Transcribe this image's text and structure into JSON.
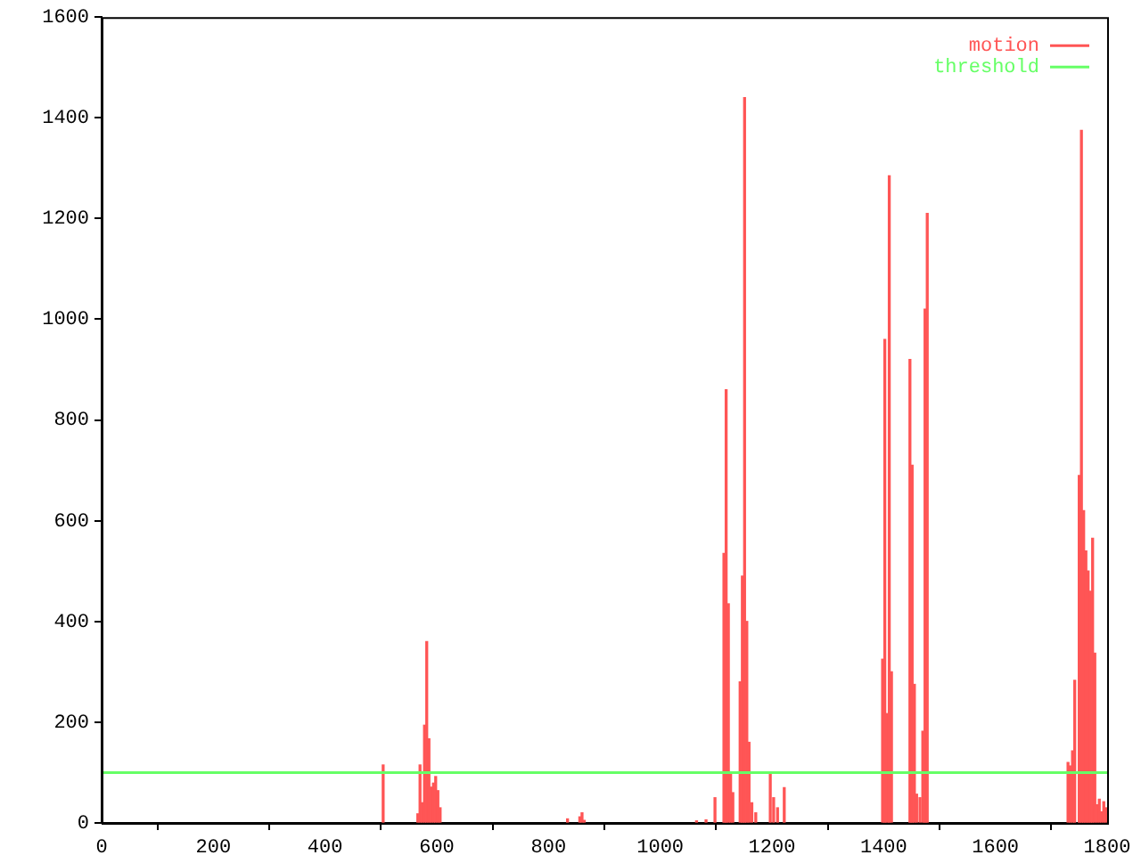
{
  "chart_data": {
    "type": "bar",
    "xlim": [
      0,
      1800
    ],
    "xticks": [
      0,
      200,
      400,
      600,
      800,
      1000,
      1200,
      1400,
      1600,
      1800
    ],
    "ylim": [
      0,
      1600
    ],
    "yticks": [
      0,
      200,
      400,
      600,
      800,
      1000,
      1200,
      1400,
      1600
    ],
    "grid": false,
    "legend": "top right",
    "series": [
      {
        "name": "motion",
        "color": "#ff5555",
        "x": [
          504,
          566,
          570,
          574,
          578,
          582,
          586,
          590,
          594,
          598,
          602,
          606,
          834,
          856,
          860,
          864,
          1065,
          1082,
          1098,
          1114,
          1118,
          1122,
          1126,
          1130,
          1143,
          1147,
          1151,
          1155,
          1159,
          1164,
          1171,
          1197,
          1203,
          1210,
          1222,
          1398,
          1402,
          1406,
          1410,
          1414,
          1447,
          1451,
          1455,
          1459,
          1465,
          1470,
          1474,
          1478,
          1730,
          1734,
          1738,
          1742,
          1750,
          1754,
          1758,
          1762,
          1766,
          1770,
          1774,
          1778,
          1782,
          1786,
          1790,
          1794,
          1798
        ],
        "values": [
          115,
          18,
          115,
          40,
          194,
          360,
          167,
          71,
          79,
          92,
          64,
          30,
          8,
          12,
          20,
          5,
          4,
          6,
          50,
          535,
          860,
          435,
          100,
          60,
          280,
          490,
          1440,
          400,
          160,
          40,
          20,
          100,
          50,
          30,
          70,
          325,
          960,
          217,
          1285,
          300,
          920,
          710,
          275,
          57,
          50,
          182,
          1020,
          1210,
          120,
          113,
          143,
          283,
          690,
          1375,
          620,
          540,
          500,
          460,
          565,
          337,
          36,
          47,
          22,
          42,
          30
        ]
      }
    ],
    "ref_lines": [
      {
        "axis": "y",
        "value": 100,
        "label": "threshold",
        "color": "#66ff66"
      }
    ]
  }
}
